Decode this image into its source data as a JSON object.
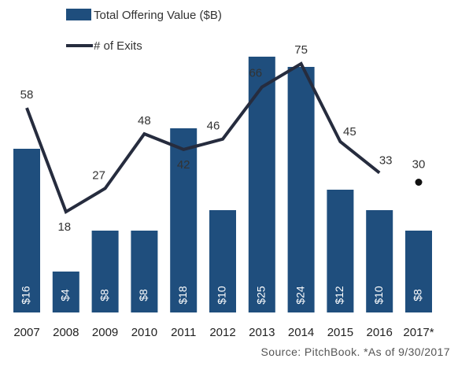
{
  "colors": {
    "bar": "#1f4e7d",
    "line": "#262c3e",
    "bar_text": "#ffffff",
    "axis_text": "#222222"
  },
  "legend": {
    "bar_label": "Total Offering Value ($B)",
    "line_label": "# of Exits"
  },
  "source_note": "Source: PitchBook. *As of 9/30/2017",
  "chart_data": {
    "type": "bar",
    "categories": [
      "2007",
      "2008",
      "2009",
      "2010",
      "2011",
      "2012",
      "2013",
      "2014",
      "2015",
      "2016",
      "2017*"
    ],
    "series": [
      {
        "name": "Total Offering Value ($B)",
        "type": "bar",
        "values": [
          16,
          4,
          8,
          8,
          18,
          10,
          25,
          24,
          12,
          10,
          8
        ],
        "labels": [
          "$16",
          "$4",
          "$8",
          "$8",
          "$18",
          "$10",
          "$25",
          "$24",
          "$12",
          "$10",
          "$8"
        ]
      },
      {
        "name": "# of Exits",
        "type": "line",
        "values": [
          58,
          18,
          27,
          48,
          42,
          46,
          66,
          75,
          45,
          33,
          30
        ],
        "labels": [
          "58",
          "18",
          "27",
          "48",
          "42",
          "46",
          "66",
          "75",
          "45",
          "33",
          "30"
        ],
        "last_point_marker_only": true
      }
    ],
    "grid": false
  }
}
